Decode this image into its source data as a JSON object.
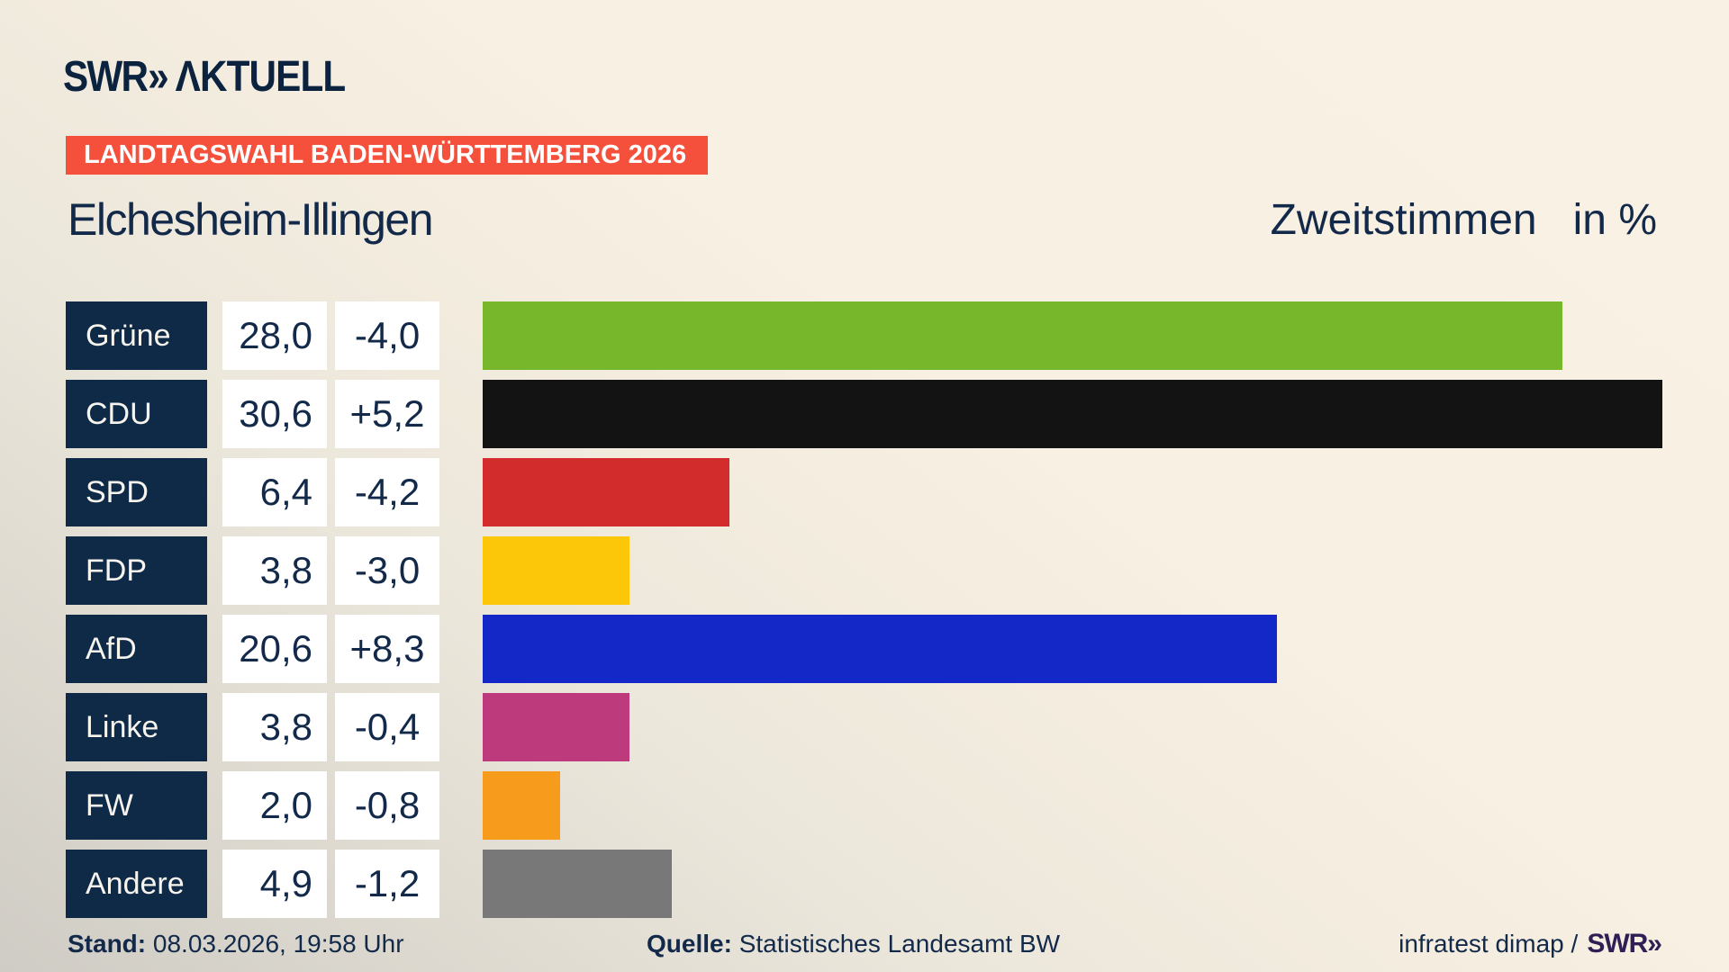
{
  "header": {
    "logo_swr": "SWR",
    "logo_chevrons": "»",
    "logo_aktuell": "ΛKTUELL"
  },
  "banner": {
    "text": "LANDTAGSWAHL BADEN-WÜRTTEMBERG 2026",
    "bg_color": "#f5503c",
    "text_color": "#ffffff"
  },
  "title": {
    "municipality": "Elchesheim-Illingen",
    "measure": "Zweitstimmen",
    "unit": "in %"
  },
  "chart_data": {
    "type": "bar",
    "orientation": "horizontal",
    "title": "Zweitstimmen in % — Elchesheim-Illingen, Landtagswahl Baden-Württemberg 2026",
    "unit": "percent",
    "xlim": [
      0,
      30.6
    ],
    "grid": false,
    "legend": "none",
    "categories": [
      "Grüne",
      "CDU",
      "SPD",
      "FDP",
      "AfD",
      "Linke",
      "FW",
      "Andere"
    ],
    "values": [
      28.0,
      30.6,
      6.4,
      3.8,
      20.6,
      3.8,
      2.0,
      4.9
    ],
    "changes": [
      -4.0,
      5.2,
      -4.2,
      -3.0,
      8.3,
      -0.4,
      -0.8,
      -1.2
    ],
    "rows": [
      {
        "party": "Grüne",
        "value": 28.0,
        "value_label": "28,0",
        "change_label": "-4,0",
        "color": "#76b72b"
      },
      {
        "party": "CDU",
        "value": 30.6,
        "value_label": "30,6",
        "change_label": "+5,2",
        "color": "#131313"
      },
      {
        "party": "SPD",
        "value": 6.4,
        "value_label": "6,4",
        "change_label": "-4,2",
        "color": "#d22d2c"
      },
      {
        "party": "FDP",
        "value": 3.8,
        "value_label": "3,8",
        "change_label": "-3,0",
        "color": "#fcc609"
      },
      {
        "party": "AfD",
        "value": 20.6,
        "value_label": "20,6",
        "change_label": "+8,3",
        "color": "#1428c8"
      },
      {
        "party": "Linke",
        "value": 3.8,
        "value_label": "3,8",
        "change_label": "-0,4",
        "color": "#bd3a7d"
      },
      {
        "party": "FW",
        "value": 2.0,
        "value_label": "2,0",
        "change_label": "-0,8",
        "color": "#f79b1c"
      },
      {
        "party": "Andere",
        "value": 4.9,
        "value_label": "4,9",
        "change_label": "-1,2",
        "color": "#787878"
      }
    ],
    "colors": {
      "label_cell_bg": "#0e2a47",
      "value_cell_bg": "#ffffff",
      "text": "#13294a"
    }
  },
  "footer": {
    "stand_label": "Stand:",
    "stand_value": "08.03.2026, 19:58 Uhr",
    "quelle_label": "Quelle:",
    "quelle_value": "Statistisches Landesamt BW",
    "credit_text": "infratest dimap /",
    "credit_logo": "SWR»"
  }
}
